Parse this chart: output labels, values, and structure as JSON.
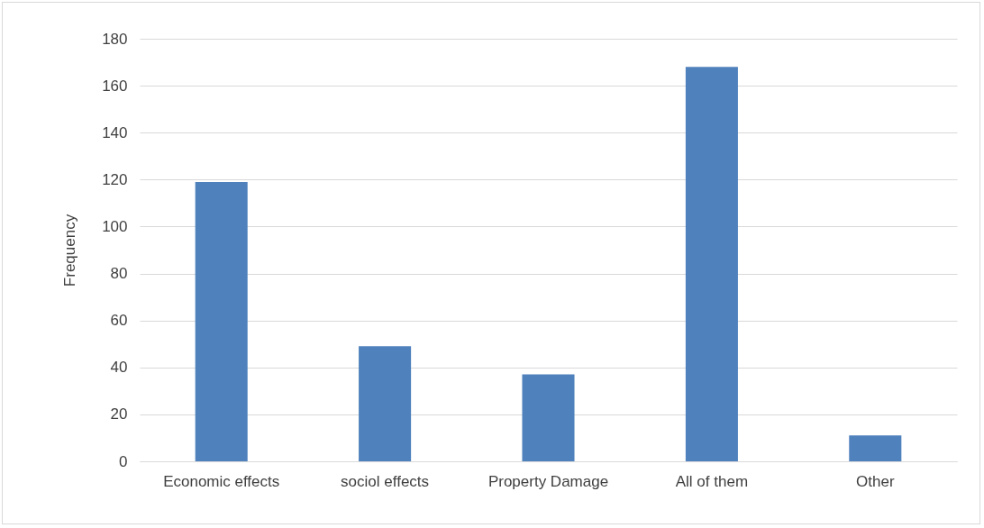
{
  "chart_data": {
    "type": "bar",
    "ylabel": "Frequency",
    "categories": [
      "Economic effects",
      "sociol effects",
      "Property Damage",
      "All of them",
      "Other"
    ],
    "values": [
      119,
      49,
      37,
      168,
      11
    ],
    "color": "#4f81bd",
    "ylim": [
      0,
      180
    ],
    "yticks": [
      0,
      20,
      40,
      60,
      80,
      100,
      120,
      140,
      160,
      180
    ],
    "grid": "y"
  }
}
